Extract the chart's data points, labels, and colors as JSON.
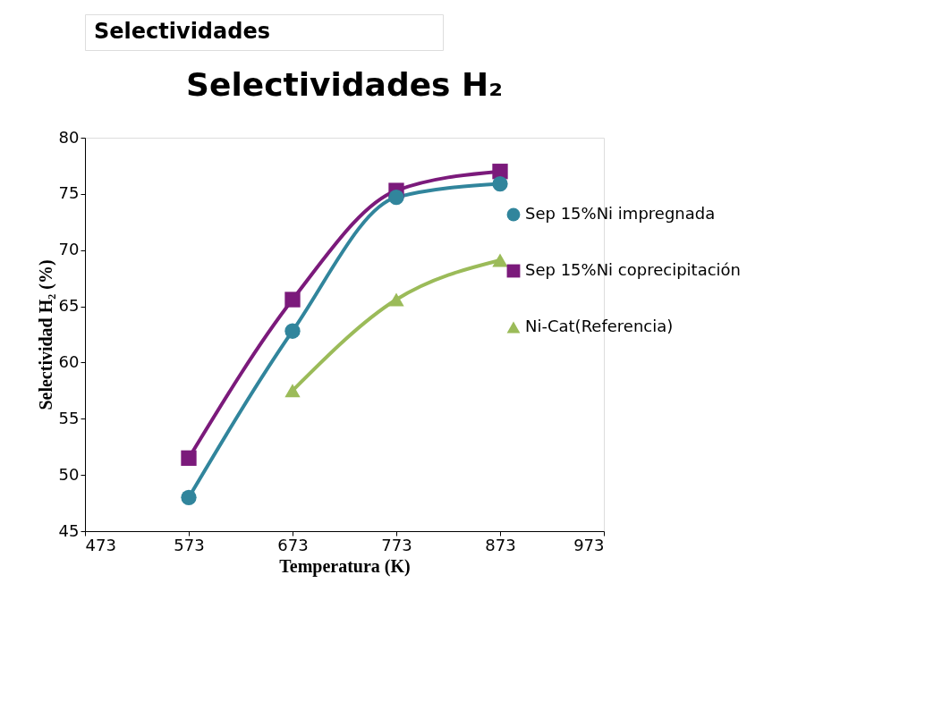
{
  "chart_data": {
    "type": "line",
    "title": "Selectividades H₂",
    "xlabel": "Temperatura (K)",
    "ylabel": "Selectividad H₂ (%)",
    "annotations": [
      "Selectividades"
    ],
    "xlim": [
      473,
      973
    ],
    "xticks": [
      473,
      573,
      673,
      773,
      873,
      973
    ],
    "ylim": [
      45,
      80
    ],
    "yticks": [
      45,
      50,
      55,
      60,
      65,
      70,
      75,
      80
    ],
    "grid": false,
    "legend": "right",
    "line_style": "solid",
    "series": [
      {
        "name": "Sep 15%Ni impregnada",
        "color": "#31859c",
        "marker": "circle",
        "x": [
          573,
          673,
          773,
          873
        ],
        "values": [
          48.0,
          62.8,
          74.7,
          75.9
        ]
      },
      {
        "name": "Sep 15%Ni coprecipitación",
        "color": "#7b1a7b",
        "marker": "square",
        "x": [
          573,
          673,
          773,
          873
        ],
        "values": [
          51.5,
          65.6,
          75.3,
          77.0
        ]
      },
      {
        "name": "Ni-Cat(Referencia)",
        "color": "#9bbb59",
        "marker": "triangle",
        "x": [
          673,
          773,
          873
        ],
        "values": [
          57.5,
          65.6,
          69.1
        ]
      }
    ]
  }
}
